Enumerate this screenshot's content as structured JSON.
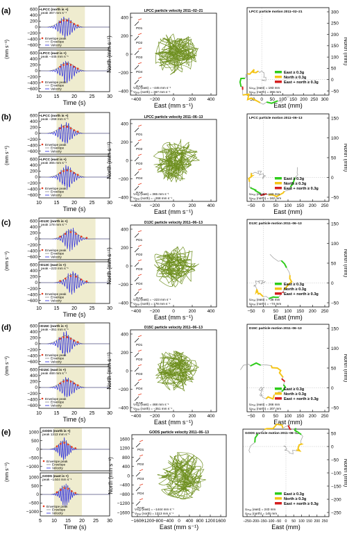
{
  "colors": {
    "velocity": "#2222dd",
    "envelope": "#888888",
    "peak": "#e63a1e",
    "highlight": "#efeccf",
    "path": "#6e8f1f",
    "motion": "#999999",
    "east": "#2ecc1a",
    "north": "#f5c518",
    "both": "#d41e1e"
  },
  "velocity_labels": {
    "ylabel": "(mm s⁻¹)",
    "xlabel": "Time (s)",
    "legend": [
      "Envelope peak",
      "Envelope",
      "Velocity"
    ]
  },
  "particle_labels": {
    "ylabel": "North (mm s⁻¹)",
    "xlabel": "East (mm s⁻¹)",
    "stations": [
      "PD1",
      "PD2",
      "PD3",
      "PD4",
      "RAP"
    ]
  },
  "motion_labels": {
    "ylabel": "North (mm)",
    "xlabel": "East (mm)",
    "legend": [
      "East ≥ 0.3g",
      "North ≥ 0.3g",
      "East + north ≥ 0.3g"
    ]
  },
  "chart_data": [
    {
      "panel": "(a)",
      "type": "line",
      "velocity_plots": [
        {
          "label": "LPCC (north is +)",
          "peak_text": "peak 367 mm s⁻¹"
        },
        {
          "label": "LPCC (east is +)",
          "peak_text": "peak −445 mm s⁻¹"
        }
      ],
      "x_ticks": [
        10,
        15,
        20,
        25,
        30
      ],
      "y_ticks": [
        600,
        400,
        200,
        0,
        -200,
        -400,
        -600
      ],
      "highlight_s": [
        15,
        23
      ],
      "particle": {
        "title": "LPCC particle velocity 2011–02–21",
        "vmax_east": "Vₘₐₓ (east)  = −445 mm s⁻¹",
        "vmax_north": "Vₘₐₓ (north) = 367 mm s⁻¹",
        "x_ticks": [
          -400,
          -200,
          0,
          200,
          400
        ]
      },
      "motion": {
        "title": "LPCC particle motion 2011–02–21",
        "umax_east": "Uₘₐₓ (east)  = 193 mm",
        "umax_north": "Uₘₐₓ (north) = 266 mm",
        "x_ticks": [
          -50,
          0,
          50,
          100,
          150,
          200,
          250,
          300
        ],
        "y_ticks": [
          300,
          250,
          200,
          150,
          100,
          50,
          0,
          -50
        ]
      }
    },
    {
      "panel": "(b)",
      "type": "line",
      "velocity_plots": [
        {
          "label": "LPCC (north is +)",
          "peak_text": "peak −268 mm s⁻¹"
        },
        {
          "label": "LPCC (east is +)",
          "peak_text": "peak 365 mm s⁻¹"
        }
      ],
      "x_ticks": [
        10,
        15,
        20,
        25,
        30
      ],
      "y_ticks": [
        600,
        400,
        200,
        0,
        -200,
        -400,
        -600
      ],
      "highlight_s": [
        15,
        23
      ],
      "particle": {
        "title": "LPCC particle velocity 2011–06–13",
        "vmax_east": "Vₘₐₓ (east)  = 365 mm s⁻¹",
        "vmax_north": "Vₘₐₓ (north) = −268 mm s⁻¹",
        "x_ticks": [
          -400,
          -200,
          0,
          200,
          400
        ]
      },
      "motion": {
        "title": "LPCC particle motion 2011–06–13",
        "umax_east": "Uₘₐₓ (east)  = 183 mm",
        "umax_north": "Uₘₐₓ (north) = 162 mm",
        "x_ticks": [
          -50,
          0,
          50,
          100,
          150,
          200,
          250
        ],
        "y_ticks": [
          150,
          100,
          50,
          0,
          -50
        ]
      }
    },
    {
      "panel": "(c)",
      "type": "line",
      "velocity_plots": [
        {
          "label": "D13C (north is +)",
          "peak_text": "peak 178 mm s⁻¹"
        },
        {
          "label": "D13C (east is +)",
          "peak_text": "peak −223 mm s⁻¹"
        }
      ],
      "x_ticks": [
        10,
        15,
        20,
        25,
        30
      ],
      "y_ticks": [
        600,
        400,
        200,
        0,
        -200,
        -400,
        -600
      ],
      "highlight_s": [
        15,
        26
      ],
      "particle": {
        "title": "D13C particle velocity 2011–06–13",
        "vmax_east": "Vₘₐₓ (east)  = −223 mm s⁻¹",
        "vmax_north": "Vₘₐₓ (north) = 178 mm s⁻¹",
        "x_ticks": [
          -400,
          -200,
          0,
          200,
          400
        ]
      },
      "motion": {
        "title": "D13C particle motion 2011–06–13",
        "umax_east": "Uₘₐₓ (east)  = −38 mm",
        "umax_north": "Uₘₐₓ (north) = −74 mm",
        "x_ticks": [
          -50,
          0,
          50,
          100,
          150,
          200,
          250
        ],
        "y_ticks": [
          150,
          100,
          50,
          0,
          -50
        ]
      }
    },
    {
      "panel": "(d)",
      "type": "line",
      "velocity_plots": [
        {
          "label": "D15C (north is +)",
          "peak_text": "peak −351 mm s⁻¹"
        },
        {
          "label": "D15C (east is +)",
          "peak_text": "peak 468 mm s⁻¹"
        }
      ],
      "x_ticks": [
        10,
        15,
        20,
        25,
        30
      ],
      "y_ticks": [
        600,
        400,
        200,
        0,
        -200,
        -400,
        -600
      ],
      "highlight_s": [
        15,
        23
      ],
      "particle": {
        "title": "D15C particle velocity 2011–06–13",
        "vmax_east": "Vₘₐₓ (east)  = 468 mm s⁻¹",
        "vmax_north": "Vₘₐₓ (north) = −351 mm s⁻¹",
        "x_ticks": [
          -400,
          -200,
          0,
          200,
          400
        ]
      },
      "motion": {
        "title": "D15C particle motion 2011–06–13",
        "umax_east": "Uₘₐₓ (east)  = 266 mm",
        "umax_north": "Uₘₐₓ (north) = 207 mm",
        "x_ticks": [
          -50,
          0,
          50,
          100,
          150,
          200,
          250
        ],
        "y_ticks": [
          150,
          100,
          50,
          0,
          -50
        ]
      }
    },
    {
      "panel": "(e)",
      "type": "line",
      "velocity_plots": [
        {
          "label": "GODS (north is +)",
          "peak_text": "peak 1313 mm s⁻¹"
        },
        {
          "label": "GODS (east is +)",
          "peak_text": "peak −1444 mm s⁻¹"
        }
      ],
      "x_ticks": [
        5,
        10,
        15,
        20,
        25,
        30
      ],
      "y_ticks": [
        1000,
        500,
        0,
        -500,
        -1000
      ],
      "highlight_s": [
        10,
        20
      ],
      "particle": {
        "title": "GODS particle velocity 2011–06–13",
        "vmax_east": "Vₘₐₓ (east)  = −1444 mm s⁻¹",
        "vmax_north": "Vₘₐₓ (north) = 1313 mm s⁻¹",
        "x_ticks": [
          -1600,
          -1200,
          -800,
          -400,
          0,
          400,
          800,
          1200,
          1600
        ]
      },
      "motion": {
        "title": "GODS particle motion 2011–06–13",
        "umax_east": "Uₘₐₓ (east)  = 243 mm",
        "umax_north": "Uₘₐₓ (north) = 145 mm",
        "x_ticks": [
          -250,
          -200,
          -150,
          -100,
          -50,
          0,
          50,
          100,
          150,
          200,
          250
        ],
        "y_ticks": [
          50,
          0,
          -50,
          -100,
          -150,
          -200,
          -250
        ]
      }
    }
  ]
}
